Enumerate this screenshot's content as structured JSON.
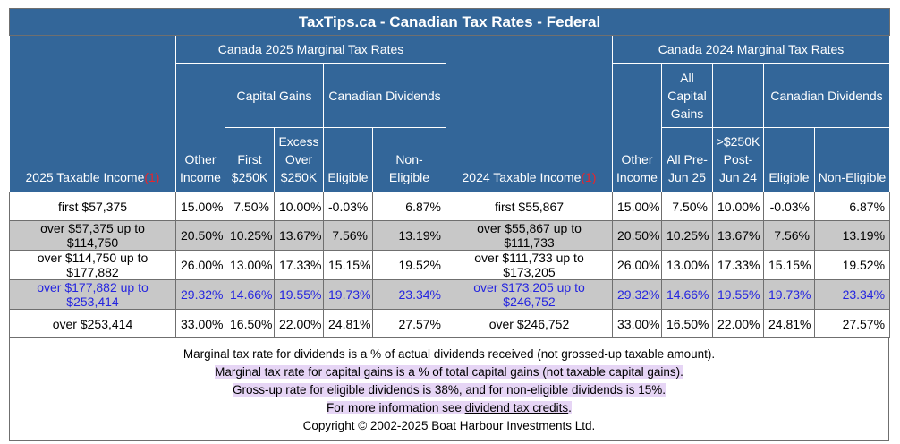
{
  "title": "TaxTips.ca - Canadian Tax Rates - Federal",
  "left": {
    "group_title": "Canada 2025 Marginal Tax Rates",
    "income_header": "2025 Taxable Income",
    "note_ref": "(1)",
    "other_income": "Other Income",
    "capital_gains": "Capital Gains",
    "first_250k": "First $250K",
    "excess_250k": "Excess Over $250K",
    "canadian_dividends": "Canadian Dividends",
    "eligible": "Eligible",
    "non_eligible": "Non-Eligible"
  },
  "right": {
    "group_title": "Canada 2024 Marginal Tax Rates",
    "income_header": "2024 Taxable Income",
    "note_ref": "(1)",
    "other_income": "Other Income",
    "all_capital_gains": "All Capital Gains",
    "all_pre_jun25": "All Pre-Jun 25",
    "over_250k_post": ">$250K Post-Jun 24",
    "canadian_dividends": "Canadian Dividends",
    "eligible": "Eligible",
    "non_eligible": "Non-Eligible"
  },
  "rows": [
    {
      "style": "white",
      "l_income": "first $57,375",
      "l_other": "15.00%",
      "l_cg1": "7.50%",
      "l_cg2": "10.00%",
      "l_elig": "-0.03%",
      "l_nonelig": "6.87%",
      "r_income": "first $55,867",
      "r_other": "15.00%",
      "r_cg1": "7.50%",
      "r_cg2": "10.00%",
      "r_elig": "-0.03%",
      "r_nonelig": "6.87%"
    },
    {
      "style": "gray",
      "l_income": "over $57,375 up to $114,750",
      "l_other": "20.50%",
      "l_cg1": "10.25%",
      "l_cg2": "13.67%",
      "l_elig": "7.56%",
      "l_nonelig": "13.19%",
      "r_income": "over $55,867 up to $111,733",
      "r_other": "20.50%",
      "r_cg1": "10.25%",
      "r_cg2": "13.67%",
      "r_elig": "7.56%",
      "r_nonelig": "13.19%"
    },
    {
      "style": "white",
      "l_income": "over $114,750 up to $177,882",
      "l_other": "26.00%",
      "l_cg1": "13.00%",
      "l_cg2": "17.33%",
      "l_elig": "15.15%",
      "l_nonelig": "19.52%",
      "r_income": "over $111,733 up to $173,205",
      "r_other": "26.00%",
      "r_cg1": "13.00%",
      "r_cg2": "17.33%",
      "r_elig": "15.15%",
      "r_nonelig": "19.52%"
    },
    {
      "style": "blue",
      "l_income": "over $177,882 up to $253,414",
      "l_other": "29.32%",
      "l_cg1": "14.66%",
      "l_cg2": "19.55%",
      "l_elig": "19.73%",
      "l_nonelig": "23.34%",
      "r_income": "over $173,205 up to $246,752",
      "r_other": "29.32%",
      "r_cg1": "14.66%",
      "r_cg2": "19.55%",
      "r_elig": "19.73%",
      "r_nonelig": "23.34%"
    },
    {
      "style": "white",
      "l_income": "over $253,414",
      "l_other": "33.00%",
      "l_cg1": "16.50%",
      "l_cg2": "22.00%",
      "l_elig": "24.81%",
      "l_nonelig": "27.57%",
      "r_income": "over $246,752",
      "r_other": "33.00%",
      "r_cg1": "16.50%",
      "r_cg2": "22.00%",
      "r_elig": "24.81%",
      "r_nonelig": "27.57%"
    }
  ],
  "footer": {
    "line1": "Marginal tax rate for dividends is a % of actual dividends received (not grossed-up taxable amount).",
    "line2": "Marginal tax rate for capital gains is a % of total capital gains (not taxable capital gains).",
    "line3": "Gross-up rate for eligible dividends is 38%, and for non-eligible dividends is 15%.",
    "line4_prefix": "For more information see ",
    "line4_link": "dividend tax credits",
    "line4_suffix": ".",
    "copyright": "Copyright © 2002-2025 Boat Harbour Investments Ltd."
  },
  "colors": {
    "header_bg": "#336699",
    "gray_row": "#c8c8c8",
    "blue_text": "#2525e0",
    "highlight": "#e6d5f5",
    "note_red": "#e8252b"
  }
}
